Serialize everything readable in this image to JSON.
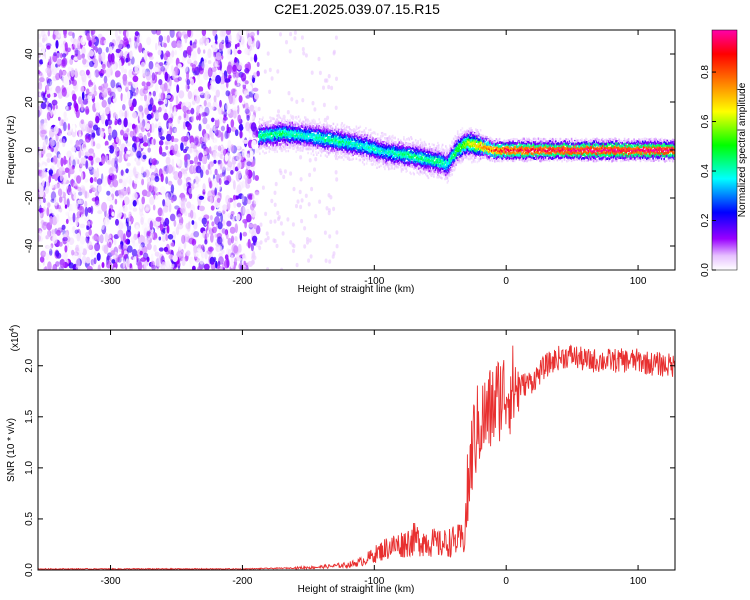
{
  "title": "C2E1.2025.039.07.15.R15",
  "chart_data": [
    {
      "type": "heatmap",
      "xlabel": "Height of straight line (km)",
      "ylabel": "Frequency (Hz)",
      "xlim": [
        -355,
        128
      ],
      "ylim": [
        -50,
        50
      ],
      "xticks": [
        -300,
        -200,
        -100,
        0,
        100
      ],
      "yticks": [
        -40,
        -20,
        0,
        20,
        40
      ],
      "colorbar": {
        "label": "Normalized spectral amplitude",
        "range": [
          0,
          0.97
        ],
        "ticks": [
          0.0,
          0.2,
          0.4,
          0.6,
          0.8
        ],
        "tick_labels": [
          "0.0",
          "0.2",
          "0.4",
          "0.6",
          "0.8"
        ],
        "colors": [
          "#ffffff",
          "#e6bfff",
          "#9900ff",
          "#0000ff",
          "#00ffff",
          "#00ff00",
          "#ffff00",
          "#ff8000",
          "#ff0000",
          "#ff00aa"
        ]
      },
      "noise_region_x": [
        -355,
        -188
      ],
      "signal_track": [
        {
          "x": -188,
          "freq": 6,
          "amp": 0.45
        },
        {
          "x": -170,
          "freq": 7,
          "amp": 0.45
        },
        {
          "x": -150,
          "freq": 6,
          "amp": 0.4
        },
        {
          "x": -130,
          "freq": 4,
          "amp": 0.45
        },
        {
          "x": -110,
          "freq": 2,
          "amp": 0.4
        },
        {
          "x": -90,
          "freq": -1,
          "amp": 0.4
        },
        {
          "x": -75,
          "freq": -2,
          "amp": 0.45
        },
        {
          "x": -60,
          "freq": -4,
          "amp": 0.45
        },
        {
          "x": -50,
          "freq": -5,
          "amp": 0.45
        },
        {
          "x": -45,
          "freq": -6,
          "amp": 0.4
        },
        {
          "x": -38,
          "freq": 0,
          "amp": 0.5
        },
        {
          "x": -30,
          "freq": 3,
          "amp": 0.6
        },
        {
          "x": -22,
          "freq": 2,
          "amp": 0.7
        },
        {
          "x": -10,
          "freq": 0,
          "amp": 0.85
        },
        {
          "x": 0,
          "freq": 0,
          "amp": 0.9
        },
        {
          "x": 50,
          "freq": 0,
          "amp": 0.95
        },
        {
          "x": 128,
          "freq": 0,
          "amp": 0.95
        }
      ]
    },
    {
      "type": "line",
      "xlabel": "Height of straight line (km)",
      "ylabel": "SNR (10 * v/v)",
      "y_scale_label": "(x10",
      "y_scale_exponent": "4",
      "y_scale": 10000,
      "xlim": [
        -355,
        128
      ],
      "ylim": [
        0,
        2.35
      ],
      "xticks": [
        -300,
        -200,
        -100,
        0,
        100
      ],
      "yticks": [
        0.0,
        0.5,
        1.0,
        1.5,
        2.0
      ],
      "ytick_labels": [
        "0.0",
        "0.5",
        "1.0",
        "1.5",
        "2.0"
      ],
      "line_color": "#e83030",
      "series": [
        {
          "x": [
            -355,
            -300,
            -250,
            -200,
            -160,
            -140,
            -120,
            -110,
            -100,
            -90,
            -80,
            -70,
            -60,
            -50,
            -40,
            -32,
            -28,
            -25,
            -20,
            -15,
            -10,
            -5,
            0,
            10,
            20,
            30,
            40,
            50,
            60,
            80,
            100,
            110,
            128
          ],
          "values": [
            0.01,
            0.01,
            0.01,
            0.01,
            0.02,
            0.03,
            0.05,
            0.08,
            0.15,
            0.22,
            0.25,
            0.3,
            0.28,
            0.25,
            0.28,
            0.3,
            0.9,
            1.25,
            1.45,
            1.5,
            1.6,
            1.7,
            1.75,
            1.8,
            1.85,
            2.0,
            2.08,
            2.1,
            2.05,
            2.05,
            2.05,
            2.02,
            2.0
          ]
        }
      ]
    }
  ]
}
